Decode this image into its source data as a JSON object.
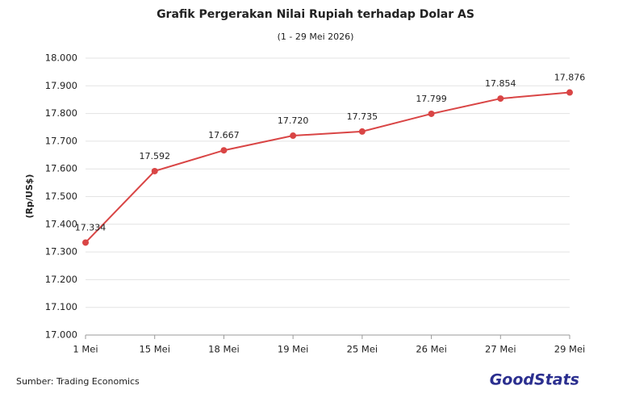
{
  "chart_data": {
    "type": "line",
    "title": "Grafik Pergerakan Nilai Rupiah terhadap Dolar AS",
    "subtitle": "(1 - 29 Mei 2026)",
    "y_axis_label": "(Rp/US$)",
    "categories": [
      "1 Mei",
      "15 Mei",
      "18 Mei",
      "19 Mei",
      "25 Mei",
      "26 Mei",
      "27 Mei",
      "29 Mei"
    ],
    "series": [
      {
        "name": "Rupiah",
        "color": "#d94545",
        "values": [
          17334,
          17592,
          17667,
          17720,
          17735,
          17799,
          17854,
          17876
        ],
        "value_labels": [
          "17.334",
          "17.592",
          "17.667",
          "17.720",
          "17.735",
          "17.799",
          "17.854",
          "17.876"
        ]
      }
    ],
    "ylim": [
      17000,
      18000
    ],
    "yticks": [
      {
        "value": 17000,
        "label": "17.000"
      },
      {
        "value": 17100,
        "label": "17.100"
      },
      {
        "value": 17200,
        "label": "17.200"
      },
      {
        "value": 17300,
        "label": "17.300"
      },
      {
        "value": 17400,
        "label": "17.400"
      },
      {
        "value": 17500,
        "label": "17.500"
      },
      {
        "value": 17600,
        "label": "17.600"
      },
      {
        "value": 17700,
        "label": "17.700"
      },
      {
        "value": 17800,
        "label": "17.800"
      },
      {
        "value": 17900,
        "label": "17.900"
      },
      {
        "value": 18000,
        "label": "18.000"
      }
    ],
    "grid": true,
    "source": "Sumber: Trading Economics",
    "logo": "GoodStats"
  }
}
